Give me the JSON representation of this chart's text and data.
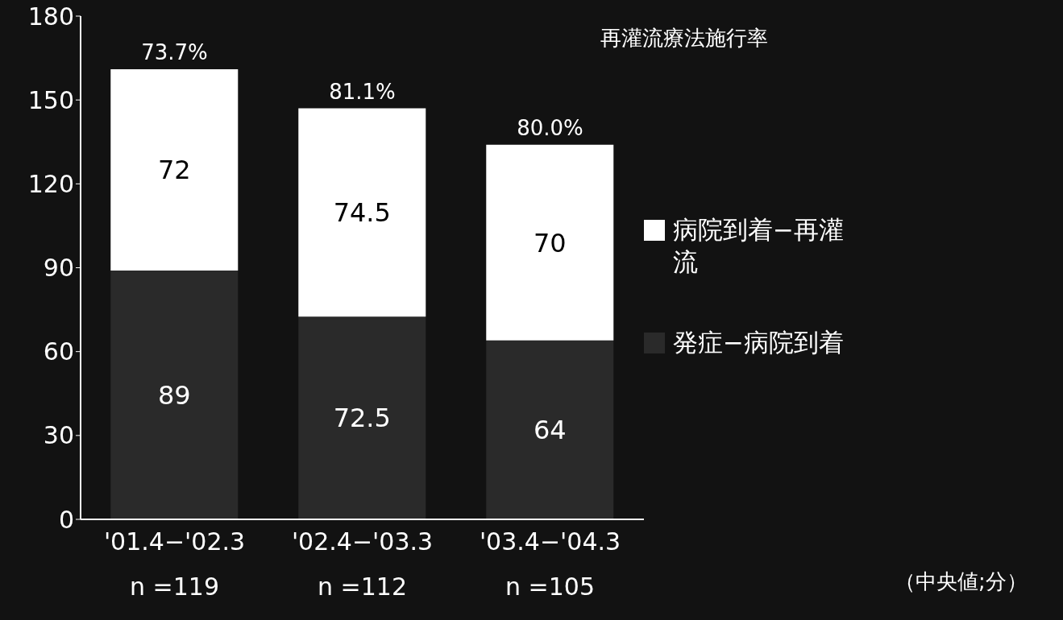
{
  "chart_data": {
    "type": "bar",
    "stacked": true,
    "data_labels": true,
    "categories": [
      "'01.4−'02.3\nn =119",
      "'02.4−'03.3\nn =112",
      "'03.4−'04.3\nn =105"
    ],
    "series": [
      {
        "name": "発症−病院到着",
        "color": "#2a2a2a",
        "values": [
          89,
          72.5,
          64
        ]
      },
      {
        "name": "病院到着−再灌流",
        "color": "#ffffff",
        "values": [
          72,
          74.5,
          70
        ]
      }
    ],
    "ylim": [
      0,
      180
    ],
    "yticks": [
      0,
      30,
      60,
      90,
      120,
      150,
      180
    ],
    "grid": false,
    "legend": "right",
    "annotations": [
      {
        "text": "73.7%",
        "x": "'01.4−'02.3\nn =119",
        "y": 161
      },
      {
        "text": "81.1%",
        "x": "'02.4−'03.3\nn =112",
        "y": 147
      },
      {
        "text": "80.0%",
        "x": "'03.4−'04.3\nn =105",
        "y": 134
      },
      "再灌流療法施行率",
      "（中央値;分）"
    ]
  }
}
